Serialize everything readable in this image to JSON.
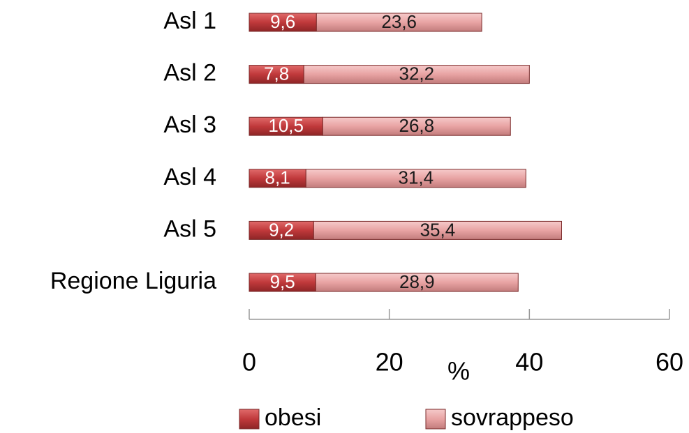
{
  "chart_data": {
    "type": "stacked_barh",
    "categories": [
      "Asl 1",
      "Asl 2",
      "Asl 3",
      "Asl 4",
      "Asl 5",
      "Regione Liguria"
    ],
    "series": [
      {
        "name": "obesi",
        "color": "#c0393b",
        "label_color": "#ffffff",
        "values": [
          9.6,
          7.8,
          10.5,
          8.1,
          9.2,
          9.5
        ],
        "value_labels": [
          "9,6",
          "7,8",
          "10,5",
          "8,1",
          "9,2",
          "9,5"
        ]
      },
      {
        "name": "sovrappeso",
        "color": "#e8a3a3",
        "label_color": "#1a1a1a",
        "values": [
          23.6,
          32.2,
          26.8,
          31.4,
          35.4,
          28.9
        ],
        "value_labels": [
          "23,6",
          "32,2",
          "26,8",
          "31,4",
          "35,4",
          "28,9"
        ]
      }
    ],
    "xlabel": "%",
    "xlim": [
      0,
      60
    ],
    "xticks": [
      0,
      20,
      40,
      60
    ],
    "legend": "bottom"
  }
}
